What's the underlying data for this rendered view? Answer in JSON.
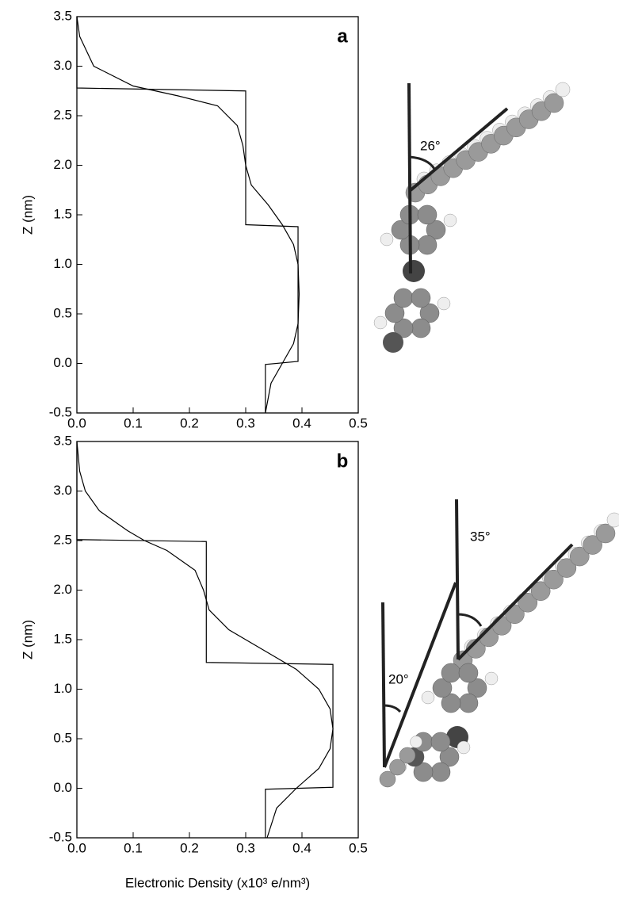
{
  "chart_data": [
    {
      "type": "line",
      "panel_label": "a",
      "ylabel": "Z (nm)",
      "annotations": [
        "26°"
      ],
      "xlim": [
        0,
        0.5
      ],
      "ylim": [
        -0.5,
        3.5
      ],
      "xticks": [
        {
          "value": 0,
          "label": "0.0"
        },
        0.1,
        0.2,
        0.3,
        0.4,
        0.5
      ],
      "yticks": [
        -0.5,
        {
          "value": 0,
          "label": "0.0"
        },
        0.5,
        {
          "value": 1,
          "label": "1.0"
        },
        1.5,
        {
          "value": 2,
          "label": "2.0"
        },
        2.5,
        {
          "value": 3,
          "label": "3.0"
        },
        3.5
      ],
      "series": [
        {
          "color": "#000000",
          "x": [
            0,
            0,
            0.3,
            0.3,
            0.393,
            0.393,
            0.335,
            0.335
          ],
          "values": [
            3.5,
            2.78,
            2.75,
            1.4,
            1.38,
            0.02,
            -0.01,
            -0.5
          ]
        },
        {
          "color": "#000000",
          "x": [
            0,
            0.005,
            0.03,
            0.1,
            0.18,
            0.25,
            0.285,
            0.295,
            0.3,
            0.31,
            0.34,
            0.365,
            0.385,
            0.393,
            0.395,
            0.393,
            0.385,
            0.365,
            0.345,
            0.335
          ],
          "values": [
            3.5,
            3.3,
            3.0,
            2.8,
            2.7,
            2.6,
            2.4,
            2.2,
            2.0,
            1.8,
            1.6,
            1.4,
            1.2,
            1.0,
            0.7,
            0.4,
            0.2,
            0.0,
            -0.2,
            -0.5
          ]
        }
      ]
    },
    {
      "type": "line",
      "panel_label": "b",
      "ylabel": "Z (nm)",
      "xlabel": "Electronic Density (x10³ e/nm³)",
      "annotations": [
        "35°",
        "20°"
      ],
      "xlim": [
        0,
        0.5
      ],
      "ylim": [
        -0.5,
        3.5
      ],
      "xticks": [
        {
          "value": 0,
          "label": "0.0"
        },
        0.1,
        0.2,
        0.3,
        0.4,
        0.5
      ],
      "yticks": [
        -0.5,
        {
          "value": 0,
          "label": "0.0"
        },
        0.5,
        {
          "value": 1,
          "label": "1.0"
        },
        1.5,
        {
          "value": 2,
          "label": "2.0"
        },
        2.5,
        {
          "value": 3,
          "label": "3.0"
        },
        3.5
      ],
      "series": [
        {
          "color": "#000000",
          "x": [
            0,
            0,
            0.23,
            0.23,
            0.455,
            0.455,
            0.335,
            0.335
          ],
          "values": [
            3.5,
            2.51,
            2.49,
            1.27,
            1.25,
            0.01,
            -0.01,
            -0.5
          ]
        },
        {
          "color": "#000000",
          "x": [
            0,
            0.005,
            0.015,
            0.04,
            0.09,
            0.12,
            0.16,
            0.21,
            0.225,
            0.235,
            0.27,
            0.33,
            0.39,
            0.43,
            0.45,
            0.455,
            0.45,
            0.43,
            0.39,
            0.355,
            0.338
          ],
          "values": [
            3.5,
            3.2,
            3.0,
            2.8,
            2.6,
            2.5,
            2.4,
            2.2,
            2.0,
            1.8,
            1.6,
            1.4,
            1.2,
            1.0,
            0.8,
            0.6,
            0.4,
            0.2,
            0.0,
            -0.2,
            -0.5
          ]
        }
      ]
    }
  ]
}
